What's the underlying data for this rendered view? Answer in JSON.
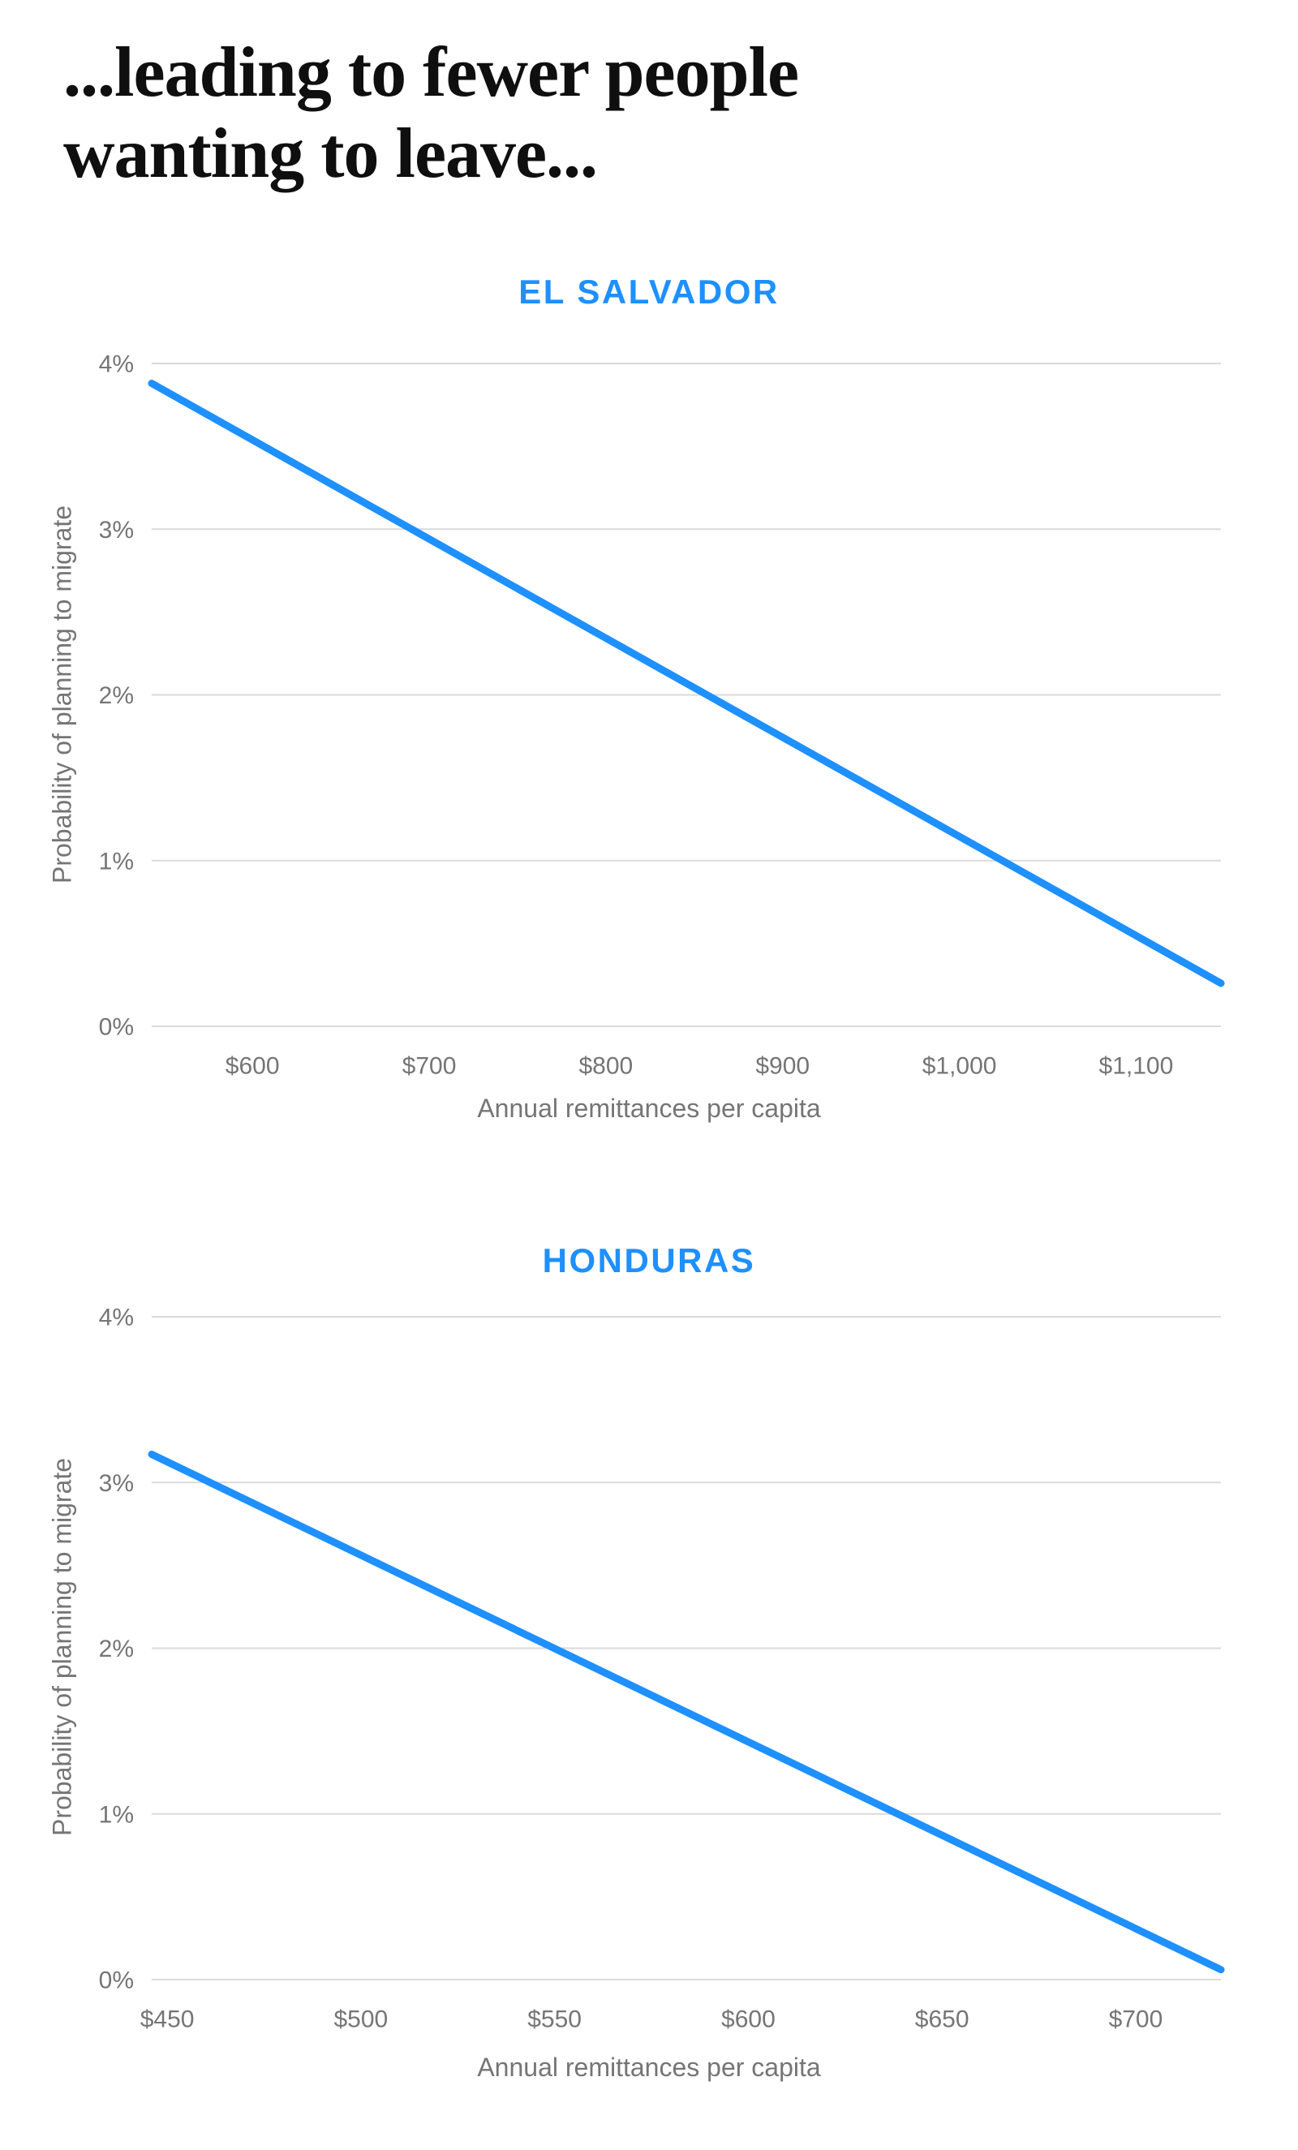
{
  "page": {
    "title_line1": "...leading to fewer people",
    "title_line2": "wanting to leave..."
  },
  "colors": {
    "accent": "#1E90FF",
    "line": "#1E90FF",
    "grid": "#DADADA",
    "axis_text": "#757575",
    "title_text": "#0f0f0f"
  },
  "chart_data": [
    {
      "type": "line",
      "title": "EL SALVADOR",
      "xlabel": "Annual remittances per capita",
      "ylabel": "Probability of planning to migrate",
      "x_domain": [
        543,
        1148
      ],
      "y_domain": [
        0,
        4
      ],
      "grid": true,
      "legend": "none",
      "x_ticks": [
        {
          "v": 600,
          "label": "$600"
        },
        {
          "v": 700,
          "label": "$700"
        },
        {
          "v": 800,
          "label": "$800"
        },
        {
          "v": 900,
          "label": "$900"
        },
        {
          "v": 1000,
          "label": "$1,000"
        },
        {
          "v": 1100,
          "label": "$1,100"
        }
      ],
      "y_ticks": [
        {
          "v": 0,
          "label": "0%"
        },
        {
          "v": 1,
          "label": "1%"
        },
        {
          "v": 2,
          "label": "2%"
        },
        {
          "v": 3,
          "label": "3%"
        },
        {
          "v": 4,
          "label": "4%"
        }
      ],
      "series": [
        {
          "points": [
            [
              543,
              3.88
            ],
            [
              1148,
              0.26
            ]
          ]
        }
      ]
    },
    {
      "type": "line",
      "title": "HONDURAS",
      "xlabel": "Annual remittances per capita",
      "ylabel": "Probability of planning to migrate",
      "x_domain": [
        446,
        722
      ],
      "y_domain": [
        0,
        4
      ],
      "grid": true,
      "legend": "none",
      "x_ticks": [
        {
          "v": 450,
          "label": "$450"
        },
        {
          "v": 500,
          "label": "$500"
        },
        {
          "v": 550,
          "label": "$550"
        },
        {
          "v": 600,
          "label": "$600"
        },
        {
          "v": 650,
          "label": "$650"
        },
        {
          "v": 700,
          "label": "$700"
        }
      ],
      "y_ticks": [
        {
          "v": 0,
          "label": "0%"
        },
        {
          "v": 1,
          "label": "1%"
        },
        {
          "v": 2,
          "label": "2%"
        },
        {
          "v": 3,
          "label": "3%"
        },
        {
          "v": 4,
          "label": "4%"
        }
      ],
      "series": [
        {
          "points": [
            [
              446,
              3.17
            ],
            [
              722,
              0.06
            ]
          ]
        }
      ]
    }
  ]
}
